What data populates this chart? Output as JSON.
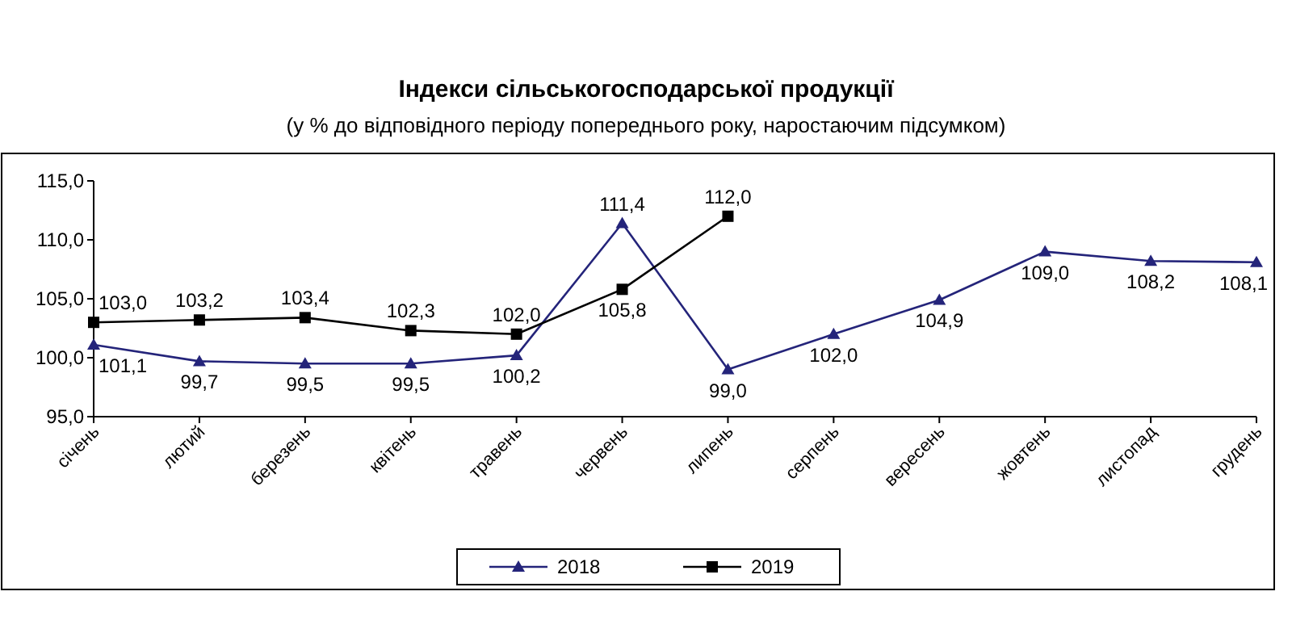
{
  "chart_data": {
    "type": "line",
    "title": "Індекси сільськогосподарської продукції",
    "subtitle": "(у % до відповідного періоду попереднього року, наростаючим підсумком)",
    "categories": [
      "січень",
      "лютий",
      "березень",
      "квітень",
      "травень",
      "червень",
      "липень",
      "серпень",
      "вересень",
      "жовтень",
      "листопад",
      "грудень"
    ],
    "ylim": [
      95,
      115
    ],
    "yticks": [
      {
        "value": 95,
        "label": "95,0"
      },
      {
        "value": 100,
        "label": "100,0"
      },
      {
        "value": 105,
        "label": "105,0"
      },
      {
        "value": 110,
        "label": "110,0"
      },
      {
        "value": 115,
        "label": "115,0"
      }
    ],
    "grid": false,
    "legend": "bottom",
    "data_labels": true,
    "series": [
      {
        "name": "2018",
        "color": "#24247a",
        "marker": "triangle",
        "values": [
          101.1,
          99.7,
          99.5,
          99.5,
          100.2,
          111.4,
          99.0,
          102.0,
          104.9,
          109.0,
          108.2,
          108.1
        ],
        "value_labels": [
          "101,1",
          "99,7",
          "99,5",
          "99,5",
          "100,2",
          "111,4",
          "99,0",
          "102,0",
          "104,9",
          "109,0",
          "108,2",
          "108,1"
        ]
      },
      {
        "name": "2019",
        "color": "#000000",
        "marker": "square",
        "values": [
          103.0,
          103.2,
          103.4,
          102.3,
          102.0,
          105.8,
          112.0,
          null,
          null,
          null,
          null,
          null
        ],
        "value_labels": [
          "103,0",
          "103,2",
          "103,4",
          "102,3",
          "102,0",
          "105,8",
          "112,0",
          null,
          null,
          null,
          null,
          null
        ]
      }
    ]
  }
}
